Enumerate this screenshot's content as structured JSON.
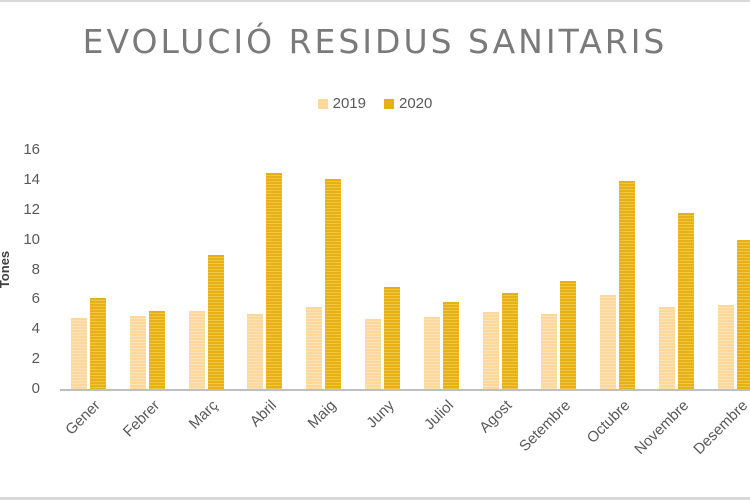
{
  "chart_data": {
    "type": "bar",
    "title": "EVOLUCIÓ RESIDUS SANITARIS",
    "xlabel": "",
    "ylabel": "Tones",
    "ylim": [
      0,
      16
    ],
    "yticks": [
      0,
      2,
      4,
      6,
      8,
      10,
      12,
      14,
      16
    ],
    "grid": false,
    "legend_position": "top",
    "categories": [
      "Gener",
      "Febrer",
      "Març",
      "Abril",
      "Maig",
      "Juny",
      "Juliol",
      "Agost",
      "Setembre",
      "Octubre",
      "Novembre",
      "Desembre"
    ],
    "series": [
      {
        "name": "2019",
        "color": "#fdd89a",
        "values": [
          4.75,
          4.9,
          5.2,
          5.0,
          5.5,
          4.7,
          4.8,
          5.15,
          5.0,
          6.3,
          5.5,
          5.6
        ]
      },
      {
        "name": "2020",
        "color": "#e6b117",
        "values": [
          6.1,
          5.2,
          9.0,
          14.45,
          14.05,
          6.85,
          5.8,
          6.4,
          7.2,
          13.95,
          11.75,
          10.0
        ]
      }
    ]
  }
}
